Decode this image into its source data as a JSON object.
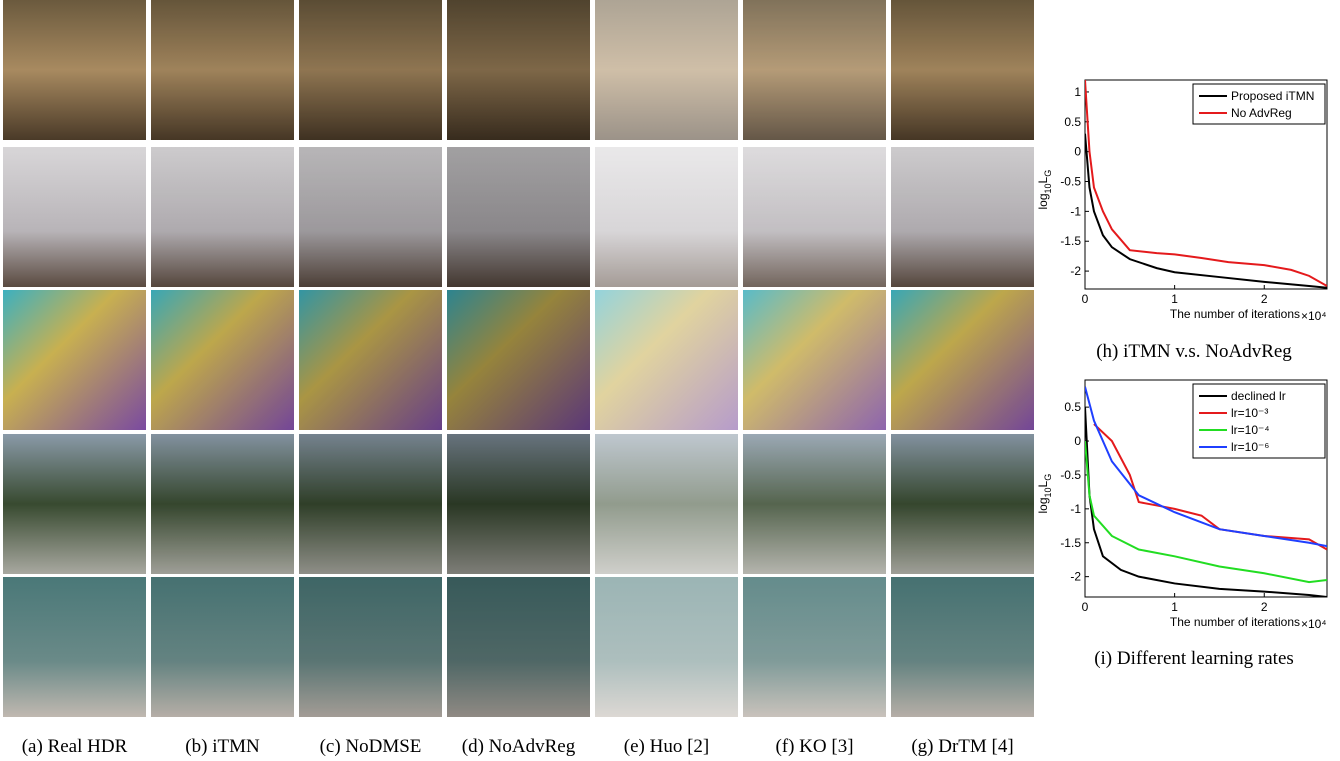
{
  "captions": [
    "(a) Real HDR",
    "(b) iTMN",
    "(c) NoDMSE",
    "(d) NoAdvReg",
    "(e) Huo [2]",
    "(f) KO [3]",
    "(g) DrTM [4]"
  ],
  "charts": [
    {
      "type": "line",
      "caption": "(h) iTMN v.s. NoAdvReg",
      "ylabel_parts": [
        "log",
        "10",
        "L",
        "G"
      ],
      "xlabel": "The number of iterations",
      "xscale": "×10⁴",
      "xlim": [
        0,
        2.7
      ],
      "xticks": [
        0,
        1,
        2
      ],
      "ylim": [
        -2.3,
        1.2
      ],
      "yticks": [
        -2,
        -1.5,
        -1,
        -0.5,
        0,
        0.5,
        1
      ],
      "series": [
        {
          "name": "Proposed iTMN",
          "color": "#000000",
          "x": [
            0,
            0.05,
            0.1,
            0.2,
            0.3,
            0.5,
            0.8,
            1,
            1.5,
            2,
            2.5,
            2.7
          ],
          "values": [
            0.3,
            -0.6,
            -1.0,
            -1.4,
            -1.6,
            -1.8,
            -1.95,
            -2.02,
            -2.1,
            -2.18,
            -2.25,
            -2.28
          ]
        },
        {
          "name": "No AdvReg",
          "color": "#e41a1c",
          "x": [
            0,
            0.05,
            0.1,
            0.2,
            0.3,
            0.5,
            0.8,
            1,
            1.3,
            1.6,
            2,
            2.3,
            2.5,
            2.7
          ],
          "values": [
            1.2,
            0,
            -0.6,
            -1.0,
            -1.3,
            -1.65,
            -1.7,
            -1.72,
            -1.78,
            -1.85,
            -1.9,
            -1.98,
            -2.08,
            -2.25
          ]
        }
      ]
    },
    {
      "type": "line",
      "caption": "(i) Different learning rates",
      "ylabel_parts": [
        "log",
        "10",
        "L",
        "G"
      ],
      "xlabel": "The number of iterations",
      "xscale": "×10⁴",
      "xlim": [
        0,
        2.7
      ],
      "xticks": [
        0,
        1,
        2
      ],
      "ylim": [
        -2.3,
        0.9
      ],
      "yticks": [
        -2,
        -1.5,
        -1,
        -0.5,
        0,
        0.5
      ],
      "series": [
        {
          "name": "declined lr",
          "color": "#000000",
          "x": [
            0,
            0.05,
            0.1,
            0.2,
            0.4,
            0.6,
            1,
            1.5,
            2,
            2.5,
            2.7
          ],
          "values": [
            0.5,
            -0.8,
            -1.3,
            -1.7,
            -1.9,
            -2.0,
            -2.1,
            -2.18,
            -2.22,
            -2.27,
            -2.3
          ]
        },
        {
          "name": "lr=10⁻³",
          "color": "#e41a1c",
          "x": [
            0.1,
            0.3,
            0.5,
            0.6,
            0.8,
            1,
            1.3,
            1.5,
            2,
            2.5,
            2.7
          ],
          "values": [
            0.25,
            0,
            -0.5,
            -0.9,
            -0.95,
            -1.0,
            -1.1,
            -1.3,
            -1.4,
            -1.45,
            -1.6
          ]
        },
        {
          "name": "lr=10⁻⁴",
          "color": "#22dd22",
          "x": [
            0,
            0.05,
            0.1,
            0.3,
            0.6,
            1,
            1.5,
            2,
            2.5,
            2.7
          ],
          "values": [
            0,
            -0.8,
            -1.1,
            -1.4,
            -1.6,
            -1.7,
            -1.85,
            -1.95,
            -2.08,
            -2.05
          ]
        },
        {
          "name": "lr=10⁻⁶",
          "color": "#1f3fff",
          "x": [
            0,
            0.1,
            0.3,
            0.6,
            1,
            1.5,
            2,
            2.5,
            2.7
          ],
          "values": [
            0.8,
            0.3,
            -0.3,
            -0.8,
            -1.05,
            -1.3,
            -1.4,
            -1.5,
            -1.55
          ]
        }
      ]
    }
  ]
}
